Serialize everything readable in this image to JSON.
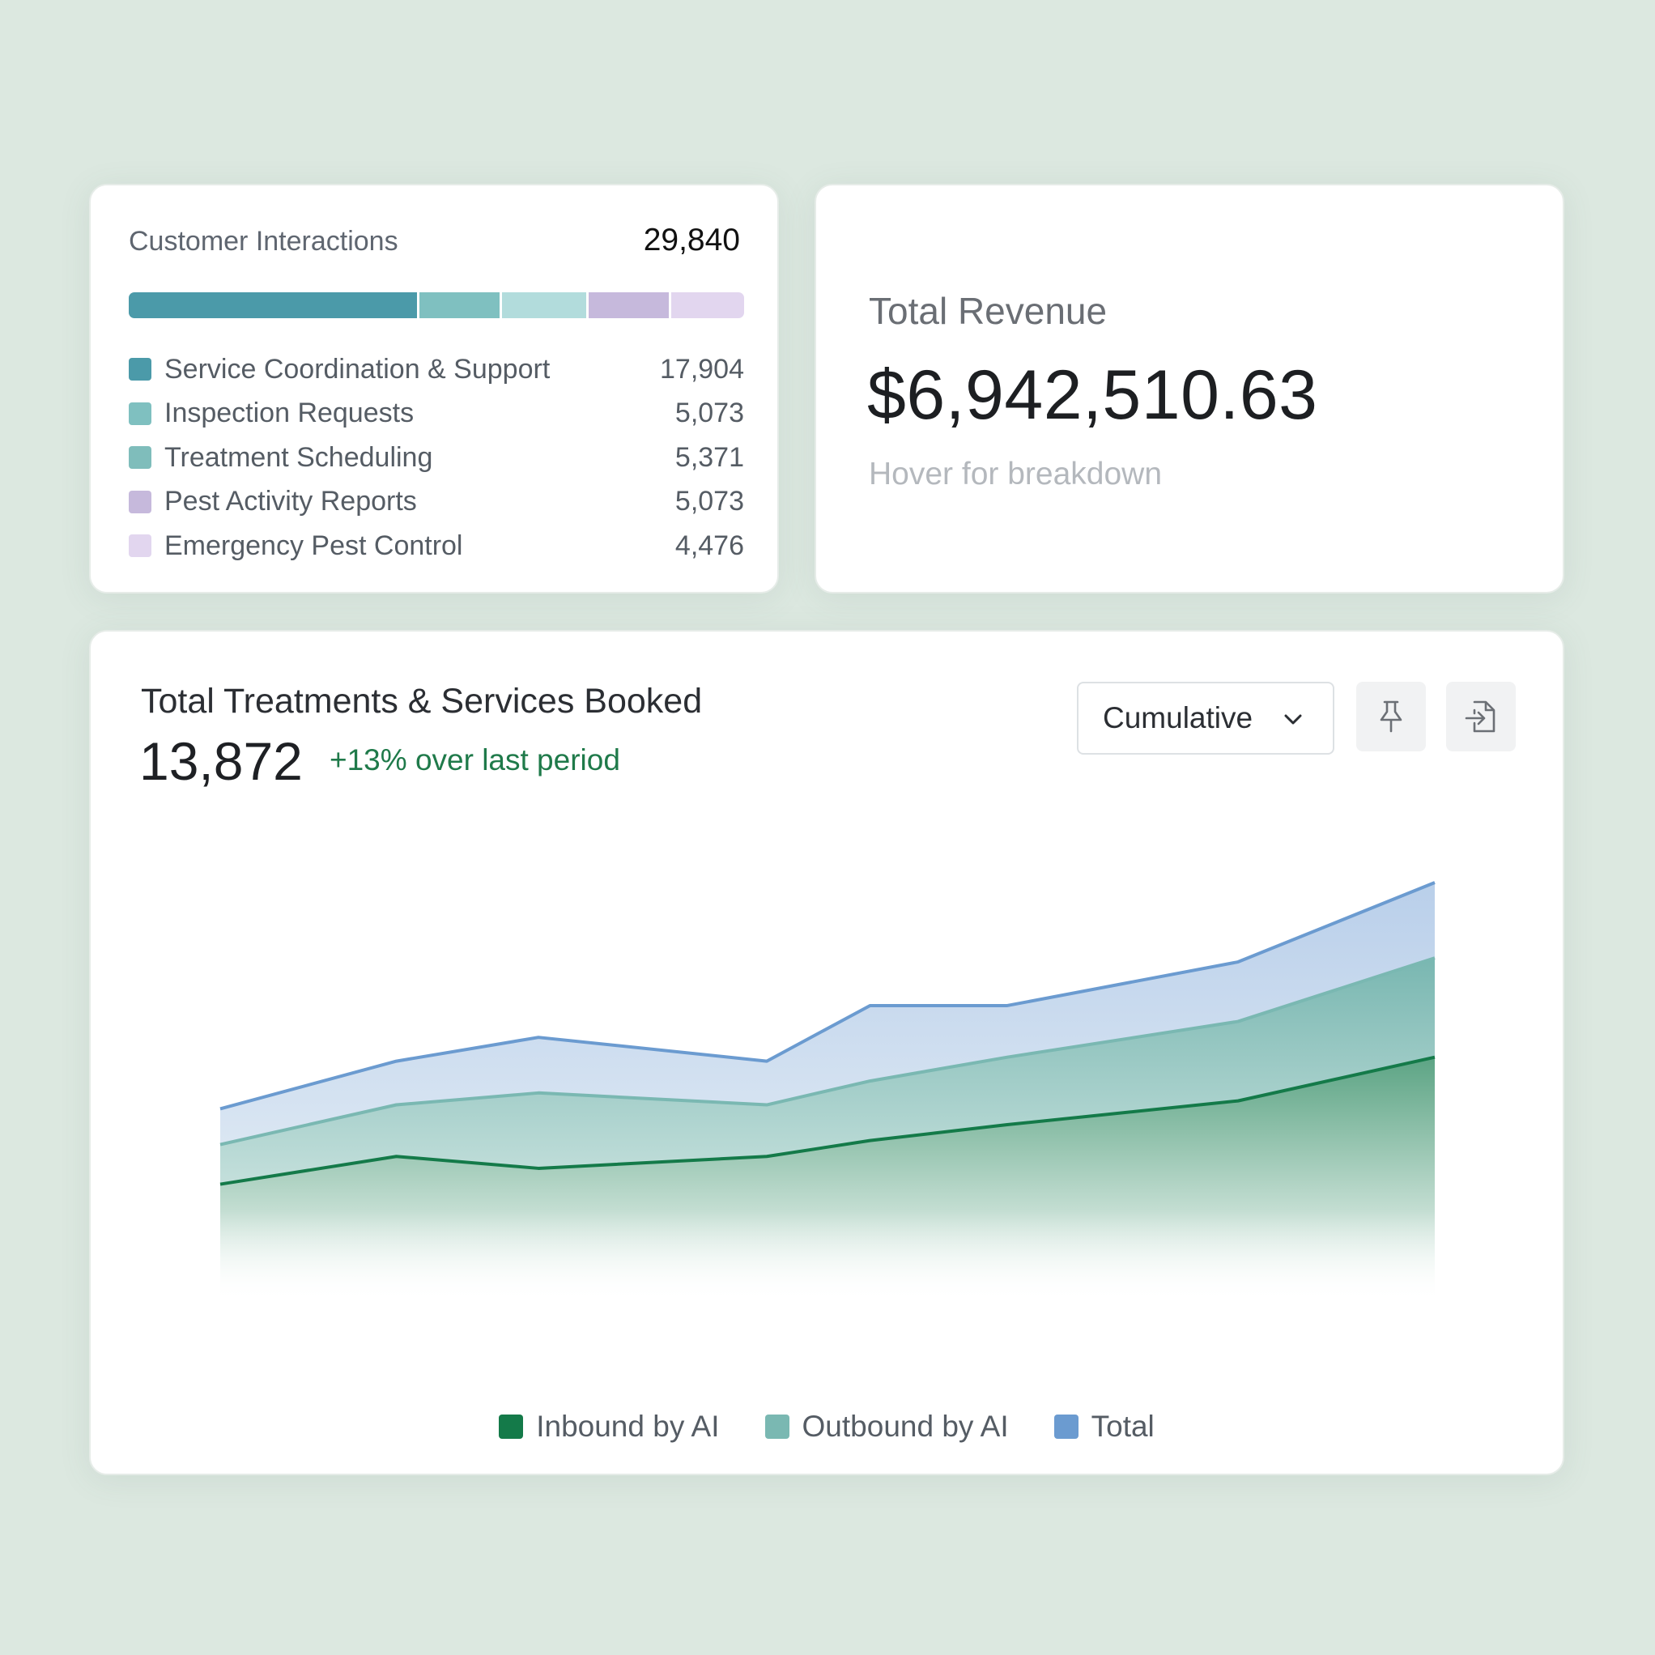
{
  "customer_interactions": {
    "title": "Customer Interactions",
    "total": "29,840",
    "items": [
      {
        "label": "Service Coordination & Support",
        "value": "17,904",
        "count": 17904,
        "color": "#4b9aa9"
      },
      {
        "label": "Inspection Requests",
        "value": "5,073",
        "count": 5073,
        "color": "#7fc0c0"
      },
      {
        "label": "Treatment Scheduling",
        "value": "5,371",
        "count": 5371,
        "color": "#7fbdbb"
      },
      {
        "label": "Pest Activity Reports",
        "value": "5,073",
        "count": 5073,
        "color": "#c6b9dc"
      },
      {
        "label": "Emergency Pest Control",
        "value": "4,476",
        "count": 4476,
        "color": "#e2d6ef"
      }
    ],
    "bar_colors": [
      "#4b9aa9",
      "#7fc0c0",
      "#b2dcdc",
      "#c6b9dc",
      "#e2d6ef"
    ]
  },
  "revenue": {
    "title": "Total Revenue",
    "value": "$6,942,510.63",
    "hint": "Hover for breakdown"
  },
  "treatments": {
    "title": "Total Treatments & Services Booked",
    "value": "13,872",
    "change": "+13% over last period",
    "dropdown_value": "Cumulative",
    "pin_icon": "pin-icon",
    "export_icon": "file-export-icon"
  },
  "chart_data": {
    "type": "area",
    "title": "",
    "xlabel": "",
    "ylabel": "",
    "ylim": [
      0,
      100
    ],
    "x": [
      1,
      2,
      3,
      4,
      5,
      6,
      7,
      8
    ],
    "grid": false,
    "legend_position": "bottom",
    "series": [
      {
        "name": "Inbound by AI",
        "color": "#147a49",
        "values": [
          24,
          31,
          28,
          31,
          35,
          39,
          45,
          56
        ]
      },
      {
        "name": "Outbound by AI",
        "color": "#7ab8b2",
        "values": [
          34,
          44,
          47,
          44,
          50,
          56,
          65,
          81
        ]
      },
      {
        "name": "Total",
        "color": "#6b9bd0",
        "values": [
          43,
          55,
          61,
          55,
          69,
          69,
          80,
          100
        ]
      }
    ]
  }
}
